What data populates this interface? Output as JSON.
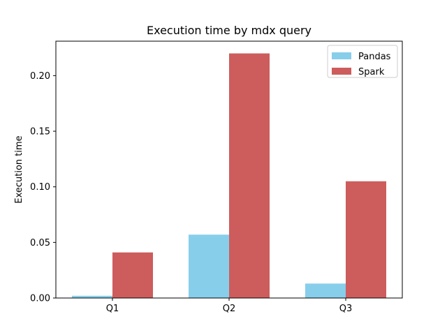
{
  "chart_data": {
    "type": "bar",
    "title": "Execution time by mdx query",
    "xlabel": "",
    "ylabel": "Execution time",
    "categories": [
      "Q1",
      "Q2",
      "Q3"
    ],
    "series": [
      {
        "name": "Pandas",
        "values": [
          0.002,
          0.057,
          0.013
        ],
        "color": "#87CEEB"
      },
      {
        "name": "Spark",
        "values": [
          0.041,
          0.22,
          0.105
        ],
        "color": "#CD5C5C"
      }
    ],
    "ylim": [
      0,
      0.231
    ],
    "yticks": [
      "0.00",
      "0.05",
      "0.10",
      "0.15",
      "0.20"
    ],
    "ytick_values": [
      0,
      0.05,
      0.1,
      0.15,
      0.2
    ],
    "legend_position": "upper right",
    "grid": false
  }
}
